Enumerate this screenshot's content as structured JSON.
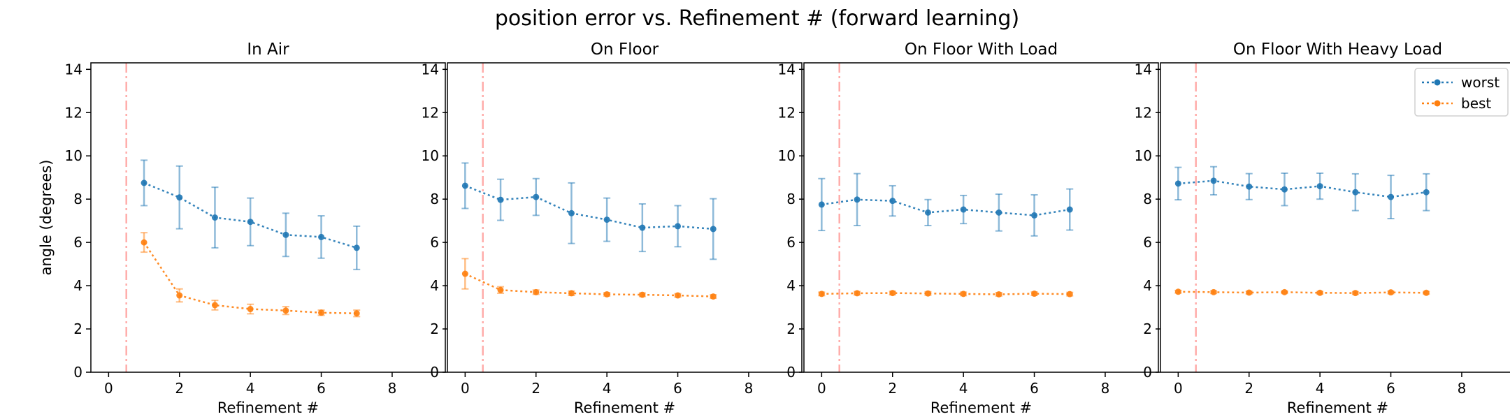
{
  "figure": {
    "title": "position error vs. Refinement # (forward learning)"
  },
  "colors": {
    "worst": "#1f77b4",
    "best": "#ff7f0e",
    "refline": "#ff9896"
  },
  "chart_data": [
    {
      "type": "line",
      "title": "In Air",
      "xlabel": "Refinement #",
      "ylabel": "angle (degrees)",
      "xlim": [
        -0.5,
        9.5
      ],
      "ylim": [
        0,
        14.3
      ],
      "xticks": [
        0,
        2,
        4,
        6,
        8
      ],
      "yticks": [
        0,
        2,
        4,
        6,
        8,
        10,
        12,
        14
      ],
      "vline_x": 0.5,
      "legend": false,
      "series": [
        {
          "name": "worst",
          "x": [
            1,
            2,
            3,
            4,
            5,
            6,
            7
          ],
          "y": [
            8.75,
            8.08,
            7.15,
            6.95,
            6.35,
            6.25,
            5.75
          ],
          "err": [
            1.05,
            1.45,
            1.4,
            1.1,
            1.0,
            0.98,
            1.0
          ]
        },
        {
          "name": "best",
          "x": [
            1,
            2,
            3,
            4,
            5,
            6,
            7
          ],
          "y": [
            6.0,
            3.55,
            3.1,
            2.92,
            2.85,
            2.75,
            2.72
          ],
          "err": [
            0.45,
            0.3,
            0.22,
            0.22,
            0.18,
            0.12,
            0.15
          ]
        }
      ]
    },
    {
      "type": "line",
      "title": "On Floor",
      "xlabel": "Refinement #",
      "ylabel": "",
      "xlim": [
        -0.5,
        9.5
      ],
      "ylim": [
        0,
        14.3
      ],
      "xticks": [
        0,
        2,
        4,
        6,
        8
      ],
      "yticks": [
        0,
        2,
        4,
        6,
        8,
        10,
        12,
        14
      ],
      "vline_x": 0.5,
      "legend": false,
      "series": [
        {
          "name": "worst",
          "x": [
            0,
            1,
            2,
            3,
            4,
            5,
            6,
            7
          ],
          "y": [
            8.62,
            7.97,
            8.1,
            7.35,
            7.05,
            6.68,
            6.75,
            6.62
          ],
          "err": [
            1.05,
            0.95,
            0.85,
            1.4,
            1.0,
            1.1,
            0.95,
            1.4
          ]
        },
        {
          "name": "best",
          "x": [
            0,
            1,
            2,
            3,
            4,
            5,
            6,
            7
          ],
          "y": [
            4.55,
            3.8,
            3.7,
            3.65,
            3.6,
            3.58,
            3.55,
            3.5
          ],
          "err": [
            0.7,
            0.15,
            0.1,
            0.1,
            0.08,
            0.08,
            0.08,
            0.08
          ]
        }
      ]
    },
    {
      "type": "line",
      "title": "On Floor With Load",
      "xlabel": "Refinement #",
      "ylabel": "",
      "xlim": [
        -0.5,
        9.5
      ],
      "ylim": [
        0,
        14.3
      ],
      "xticks": [
        0,
        2,
        4,
        6,
        8
      ],
      "yticks": [
        0,
        2,
        4,
        6,
        8,
        10,
        12,
        14
      ],
      "vline_x": 0.5,
      "legend": false,
      "series": [
        {
          "name": "worst",
          "x": [
            0,
            1,
            2,
            3,
            4,
            5,
            6,
            7
          ],
          "y": [
            7.75,
            7.98,
            7.92,
            7.38,
            7.52,
            7.38,
            7.25,
            7.52
          ],
          "err": [
            1.2,
            1.2,
            0.7,
            0.6,
            0.65,
            0.85,
            0.95,
            0.95
          ]
        },
        {
          "name": "best",
          "x": [
            0,
            1,
            2,
            3,
            4,
            5,
            6,
            7
          ],
          "y": [
            3.62,
            3.65,
            3.66,
            3.64,
            3.62,
            3.6,
            3.63,
            3.61
          ],
          "err": [
            0.08,
            0.08,
            0.08,
            0.08,
            0.08,
            0.08,
            0.08,
            0.08
          ]
        }
      ]
    },
    {
      "type": "line",
      "title": "On Floor With Heavy Load",
      "xlabel": "Refinement #",
      "ylabel": "",
      "xlim": [
        -0.5,
        9.5
      ],
      "ylim": [
        0,
        14.3
      ],
      "xticks": [
        0,
        2,
        4,
        6,
        8
      ],
      "yticks": [
        0,
        2,
        4,
        6,
        8,
        10,
        12,
        14
      ],
      "vline_x": 0.5,
      "legend": true,
      "legend_position": "top-right",
      "series": [
        {
          "name": "worst",
          "x": [
            0,
            1,
            2,
            3,
            4,
            5,
            6,
            7
          ],
          "y": [
            8.72,
            8.85,
            8.58,
            8.45,
            8.6,
            8.32,
            8.1,
            8.32
          ],
          "err": [
            0.75,
            0.65,
            0.6,
            0.75,
            0.6,
            0.85,
            1.0,
            0.85
          ]
        },
        {
          "name": "best",
          "x": [
            0,
            1,
            2,
            3,
            4,
            5,
            6,
            7
          ],
          "y": [
            3.72,
            3.7,
            3.68,
            3.7,
            3.67,
            3.66,
            3.69,
            3.67
          ],
          "err": [
            0.06,
            0.06,
            0.06,
            0.06,
            0.06,
            0.06,
            0.06,
            0.06
          ]
        }
      ]
    }
  ]
}
